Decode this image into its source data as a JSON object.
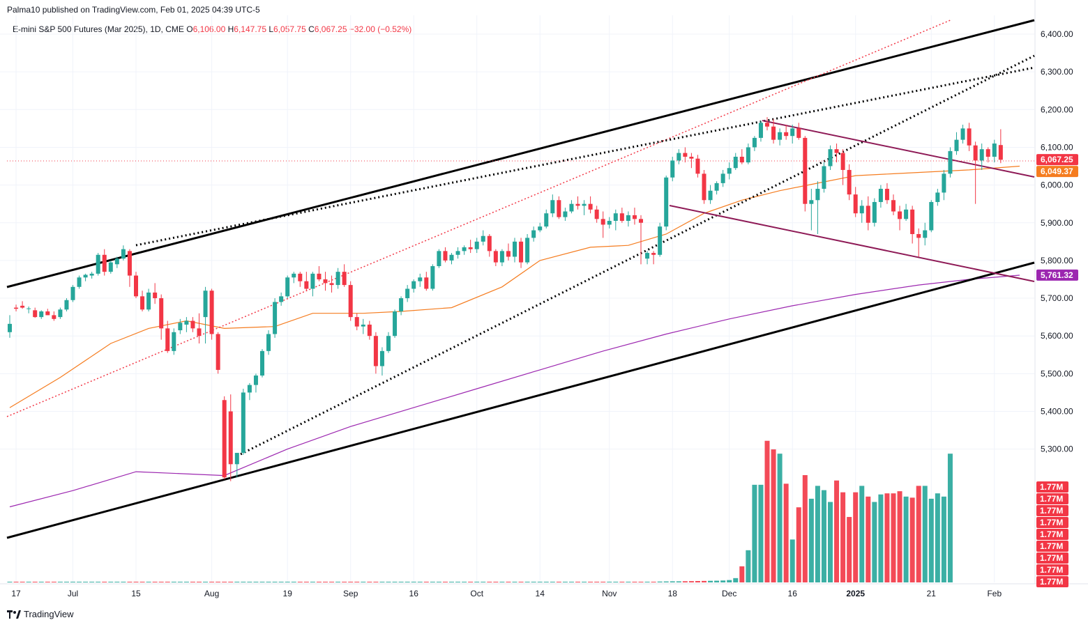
{
  "publisher": "Palma10 published on TradingView.com, Feb 01, 2025 04:39 UTC-5",
  "legend": {
    "symbol": "E-mini S&P 500 Futures (Mar 2025), 1D, CME",
    "o_label": "O",
    "o": "6,106.00",
    "h_label": "H",
    "h": "6,147.75",
    "l_label": "L",
    "l": "6,057.75",
    "c_label": "C",
    "c": "6,067.25",
    "change": "−32.00 (−0.52%)"
  },
  "footer": {
    "brand": "TradingView"
  },
  "colors": {
    "up": "#26a69a",
    "down": "#f23645",
    "ema50": "#f57c1f",
    "ema200": "#9c27b0",
    "channel": "#000000",
    "wedge": "#8e1a56"
  },
  "chart_data": {
    "type": "candlestick",
    "ylim": [
      5160,
      6450
    ],
    "y_ticks": [
      "6,400.00",
      "6,300.00",
      "6,200.00",
      "6,100.00",
      "6,000.00",
      "5,900.00",
      "5,800.00",
      "5,700.00",
      "5,600.00",
      "5,500.00",
      "5,400.00",
      "5,300.00"
    ],
    "y_tick_values": [
      6400,
      6300,
      6200,
      6100,
      6000,
      5900,
      5800,
      5700,
      5600,
      5500,
      5400,
      5300
    ],
    "x_ticks": [
      "17",
      "Jul",
      "15",
      "Aug",
      "19",
      "Sep",
      "16",
      "Oct",
      "14",
      "Nov",
      "18",
      "Dec",
      "16",
      "2025",
      "21",
      "Feb"
    ],
    "x_tick_bars": [
      1,
      10,
      20,
      32,
      44,
      54,
      64,
      74,
      84,
      95,
      105,
      114,
      124,
      134,
      146,
      156
    ],
    "price_labels": [
      "6,067.25",
      "6,049.37",
      "5,761.32"
    ],
    "volume_labels": [
      "1.77M",
      "1.77M",
      "1.77M",
      "1.77M",
      "1.77M",
      "1.77M",
      "1.77M",
      "1.77M",
      "1.77M"
    ],
    "candles": [
      [
        5610,
        5655,
        5595,
        5632
      ],
      [
        5675,
        5683,
        5665,
        5672
      ],
      [
        5680,
        5692,
        5672,
        5675
      ],
      [
        5672,
        5678,
        5660,
        5673
      ],
      [
        5668,
        5675,
        5648,
        5650
      ],
      [
        5650,
        5668,
        5645,
        5665
      ],
      [
        5665,
        5672,
        5655,
        5655
      ],
      [
        5655,
        5665,
        5640,
        5645
      ],
      [
        5650,
        5675,
        5645,
        5670
      ],
      [
        5670,
        5700,
        5665,
        5695
      ],
      [
        5695,
        5735,
        5690,
        5730
      ],
      [
        5730,
        5760,
        5725,
        5755
      ],
      [
        5755,
        5765,
        5745,
        5762
      ],
      [
        5760,
        5770,
        5752,
        5765
      ],
      [
        5765,
        5820,
        5760,
        5815
      ],
      [
        5815,
        5830,
        5760,
        5770
      ],
      [
        5770,
        5800,
        5765,
        5795
      ],
      [
        5790,
        5810,
        5780,
        5805
      ],
      [
        5805,
        5840,
        5800,
        5830
      ],
      [
        5825,
        5830,
        5730,
        5760
      ],
      [
        5760,
        5770,
        5700,
        5705
      ],
      [
        5705,
        5720,
        5665,
        5670
      ],
      [
        5670,
        5725,
        5665,
        5715
      ],
      [
        5715,
        5740,
        5685,
        5700
      ],
      [
        5700,
        5710,
        5590,
        5620
      ],
      [
        5620,
        5640,
        5555,
        5560
      ],
      [
        5560,
        5620,
        5550,
        5610
      ],
      [
        5615,
        5645,
        5605,
        5635
      ],
      [
        5630,
        5650,
        5610,
        5640
      ],
      [
        5640,
        5650,
        5610,
        5620
      ],
      [
        5620,
        5660,
        5580,
        5600
      ],
      [
        5650,
        5730,
        5580,
        5720
      ],
      [
        5720,
        5725,
        5590,
        5605
      ],
      [
        5605,
        5610,
        5500,
        5510
      ],
      [
        5430,
        5440,
        5220,
        5225
      ],
      [
        5400,
        5445,
        5215,
        5260
      ],
      [
        5260,
        5290,
        5225,
        5290
      ],
      [
        5290,
        5460,
        5285,
        5450
      ],
      [
        5450,
        5475,
        5430,
        5470
      ],
      [
        5470,
        5500,
        5450,
        5495
      ],
      [
        5495,
        5565,
        5490,
        5560
      ],
      [
        5560,
        5615,
        5550,
        5605
      ],
      [
        5605,
        5700,
        5595,
        5690
      ],
      [
        5690,
        5715,
        5680,
        5705
      ],
      [
        5705,
        5760,
        5700,
        5755
      ],
      [
        5755,
        5770,
        5740,
        5765
      ],
      [
        5765,
        5770,
        5730,
        5745
      ],
      [
        5745,
        5770,
        5720,
        5725
      ],
      [
        5725,
        5770,
        5705,
        5765
      ],
      [
        5765,
        5785,
        5745,
        5750
      ],
      [
        5750,
        5770,
        5720,
        5740
      ],
      [
        5740,
        5760,
        5715,
        5735
      ],
      [
        5735,
        5780,
        5725,
        5770
      ],
      [
        5770,
        5790,
        5730,
        5735
      ],
      [
        5735,
        5745,
        5640,
        5650
      ],
      [
        5650,
        5660,
        5615,
        5625
      ],
      [
        5625,
        5645,
        5605,
        5630
      ],
      [
        5630,
        5640,
        5590,
        5600
      ],
      [
        5600,
        5610,
        5500,
        5520
      ],
      [
        5520,
        5570,
        5495,
        5560
      ],
      [
        5560,
        5610,
        5555,
        5600
      ],
      [
        5600,
        5670,
        5595,
        5665
      ],
      [
        5665,
        5705,
        5655,
        5700
      ],
      [
        5700,
        5735,
        5690,
        5725
      ],
      [
        5725,
        5750,
        5715,
        5745
      ],
      [
        5745,
        5765,
        5730,
        5755
      ],
      [
        5755,
        5770,
        5720,
        5725
      ],
      [
        5725,
        5790,
        5720,
        5785
      ],
      [
        5785,
        5830,
        5780,
        5825
      ],
      [
        5825,
        5835,
        5795,
        5800
      ],
      [
        5800,
        5820,
        5790,
        5815
      ],
      [
        5815,
        5835,
        5805,
        5825
      ],
      [
        5825,
        5840,
        5815,
        5835
      ],
      [
        5835,
        5855,
        5820,
        5830
      ],
      [
        5830,
        5860,
        5820,
        5850
      ],
      [
        5850,
        5880,
        5840,
        5865
      ],
      [
        5865,
        5870,
        5810,
        5825
      ],
      [
        5825,
        5830,
        5785,
        5795
      ],
      [
        5795,
        5830,
        5785,
        5825
      ],
      [
        5825,
        5845,
        5800,
        5810
      ],
      [
        5810,
        5860,
        5795,
        5850
      ],
      [
        5850,
        5860,
        5780,
        5795
      ],
      [
        5795,
        5870,
        5790,
        5860
      ],
      [
        5860,
        5890,
        5850,
        5880
      ],
      [
        5880,
        5900,
        5875,
        5890
      ],
      [
        5890,
        5935,
        5885,
        5925
      ],
      [
        5925,
        5975,
        5915,
        5960
      ],
      [
        5960,
        5970,
        5910,
        5915
      ],
      [
        5915,
        5940,
        5905,
        5930
      ],
      [
        5930,
        5960,
        5925,
        5950
      ],
      [
        5950,
        5970,
        5935,
        5945
      ],
      [
        5945,
        5960,
        5920,
        5950
      ],
      [
        5950,
        5970,
        5925,
        5935
      ],
      [
        5935,
        5945,
        5900,
        5910
      ],
      [
        5910,
        5930,
        5860,
        5895
      ],
      [
        5895,
        5915,
        5885,
        5905
      ],
      [
        5905,
        5935,
        5880,
        5925
      ],
      [
        5925,
        5940,
        5900,
        5905
      ],
      [
        5905,
        5930,
        5890,
        5920
      ],
      [
        5920,
        5940,
        5895,
        5910
      ],
      [
        5910,
        5920,
        5790,
        5900
      ],
      [
        5805,
        5825,
        5790,
        5820
      ],
      [
        5820,
        5825,
        5790,
        5815
      ],
      [
        5815,
        5900,
        5810,
        5890
      ],
      [
        5890,
        6025,
        5880,
        6020
      ],
      [
        6020,
        6075,
        6010,
        6065
      ],
      [
        6065,
        6095,
        6055,
        6085
      ],
      [
        6085,
        6100,
        6060,
        6075
      ],
      [
        6075,
        6085,
        6045,
        6070
      ],
      [
        6070,
        6080,
        6020,
        6030
      ],
      [
        6030,
        6040,
        5950,
        5960
      ],
      [
        5960,
        6000,
        5950,
        5985
      ],
      [
        5985,
        6010,
        5975,
        6005
      ],
      [
        6005,
        6040,
        5995,
        6030
      ],
      [
        6030,
        6060,
        6015,
        6045
      ],
      [
        6045,
        6085,
        6040,
        6075
      ],
      [
        6075,
        6095,
        6055,
        6060
      ],
      [
        6060,
        6110,
        6055,
        6100
      ],
      [
        6100,
        6130,
        6090,
        6125
      ],
      [
        6125,
        6170,
        6115,
        6165
      ],
      [
        6165,
        6180,
        6145,
        6155
      ],
      [
        6155,
        6175,
        6110,
        6120
      ],
      [
        6120,
        6150,
        6105,
        6140
      ],
      [
        6140,
        6160,
        6120,
        6130
      ],
      [
        6130,
        6160,
        6110,
        6150
      ],
      [
        6150,
        6165,
        6120,
        6125
      ],
      [
        6125,
        6130,
        5930,
        5950
      ],
      [
        5950,
        5990,
        5880,
        5960
      ],
      [
        5960,
        6010,
        5870,
        5990
      ],
      [
        5990,
        6060,
        5980,
        6050
      ],
      [
        6050,
        6105,
        6040,
        6095
      ],
      [
        6095,
        6110,
        6060,
        6085
      ],
      [
        6085,
        6095,
        6000,
        6040
      ],
      [
        6040,
        6055,
        5960,
        5975
      ],
      [
        5975,
        5995,
        5915,
        5925
      ],
      [
        5925,
        5960,
        5900,
        5945
      ],
      [
        5945,
        5970,
        5880,
        5900
      ],
      [
        5900,
        5965,
        5890,
        5955
      ],
      [
        5955,
        6000,
        5940,
        5990
      ],
      [
        5990,
        6005,
        5950,
        5960
      ],
      [
        5960,
        5975,
        5920,
        5930
      ],
      [
        5930,
        5945,
        5880,
        5910
      ],
      [
        5910,
        5950,
        5905,
        5935
      ],
      [
        5935,
        5945,
        5845,
        5870
      ],
      [
        5870,
        5885,
        5810,
        5860
      ],
      [
        5860,
        5900,
        5840,
        5880
      ],
      [
        5880,
        5960,
        5875,
        5955
      ],
      [
        5955,
        5990,
        5945,
        5980
      ],
      [
        5980,
        6040,
        5960,
        6030
      ],
      [
        6030,
        6100,
        6020,
        6090
      ],
      [
        6090,
        6140,
        6080,
        6120
      ],
      [
        6120,
        6160,
        6110,
        6150
      ],
      [
        6150,
        6165,
        6090,
        6105
      ],
      [
        6105,
        6115,
        5950,
        6065
      ],
      [
        6065,
        6110,
        6040,
        6095
      ],
      [
        6095,
        6100,
        6060,
        6075
      ],
      [
        6075,
        6120,
        6060,
        6110
      ],
      [
        6106,
        6148,
        6058,
        6067
      ]
    ],
    "volume_index": [
      0,
      0,
      0,
      0,
      0,
      0,
      0,
      0,
      0,
      0,
      0,
      0,
      0,
      0,
      0,
      0,
      0,
      0,
      0,
      0,
      0,
      0,
      0,
      0,
      0,
      0,
      0,
      0,
      0,
      0,
      0,
      0,
      0,
      0,
      0,
      0,
      0,
      0,
      0,
      0,
      0,
      0,
      0,
      0,
      0,
      0,
      0,
      0,
      0,
      0,
      0,
      0,
      0,
      0,
      0,
      0,
      0,
      0,
      0,
      0,
      0,
      0,
      0,
      0,
      0,
      0,
      0,
      0,
      0,
      0,
      0,
      0,
      0,
      0,
      0,
      0,
      0,
      0,
      0,
      0,
      0,
      0,
      0,
      0,
      0,
      0,
      0,
      0,
      0,
      0,
      0,
      0.5,
      1,
      1.5,
      2,
      3,
      3,
      4,
      4,
      5,
      5,
      6,
      6,
      8,
      9,
      10,
      10,
      11,
      12,
      13,
      14,
      15,
      16,
      18,
      22,
      40,
      150,
      300,
      910,
      910,
      1320,
      1240,
      1200,
      920,
      400,
      700,
      1000,
      780,
      900,
      860,
      750,
      950,
      840,
      610,
      840,
      900,
      800,
      750,
      820,
      830,
      830,
      850,
      800,
      790,
      900,
      900,
      780,
      830,
      800,
      1200
    ],
    "ema50_points": [
      [
        0,
        5410
      ],
      [
        8,
        5490
      ],
      [
        16,
        5580
      ],
      [
        22,
        5620
      ],
      [
        28,
        5640
      ],
      [
        34,
        5620
      ],
      [
        42,
        5625
      ],
      [
        48,
        5660
      ],
      [
        56,
        5660
      ],
      [
        62,
        5665
      ],
      [
        70,
        5675
      ],
      [
        78,
        5730
      ],
      [
        84,
        5800
      ],
      [
        92,
        5835
      ],
      [
        98,
        5840
      ],
      [
        104,
        5870
      ],
      [
        110,
        5925
      ],
      [
        116,
        5960
      ],
      [
        122,
        5985
      ],
      [
        128,
        6005
      ],
      [
        134,
        6025
      ],
      [
        140,
        6030
      ],
      [
        146,
        6035
      ],
      [
        152,
        6040
      ],
      [
        160,
        6050
      ]
    ],
    "ema200_points": [
      [
        0,
        5147
      ],
      [
        10,
        5190
      ],
      [
        20,
        5240
      ],
      [
        34,
        5230
      ],
      [
        44,
        5300
      ],
      [
        54,
        5360
      ],
      [
        64,
        5410
      ],
      [
        74,
        5460
      ],
      [
        84,
        5510
      ],
      [
        94,
        5560
      ],
      [
        104,
        5605
      ],
      [
        114,
        5645
      ],
      [
        124,
        5680
      ],
      [
        134,
        5710
      ],
      [
        144,
        5735
      ],
      [
        152,
        5750
      ],
      [
        160,
        5761
      ]
    ]
  }
}
